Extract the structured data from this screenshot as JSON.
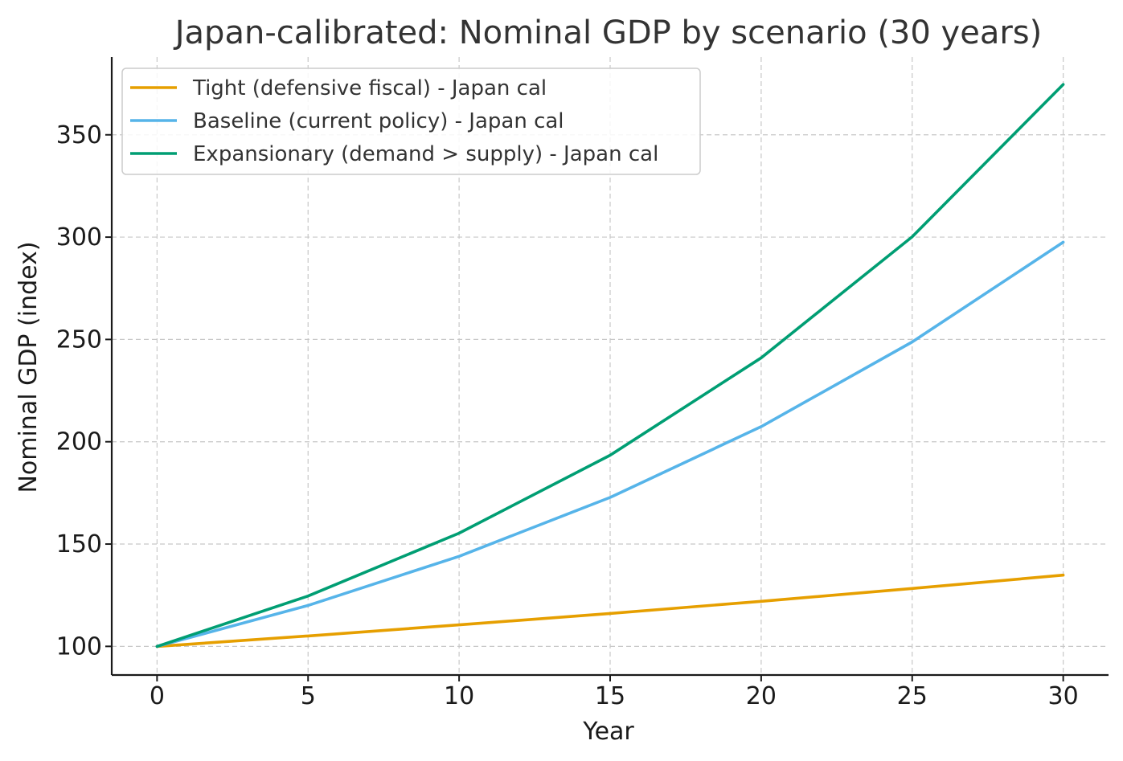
{
  "chart_data": {
    "type": "line",
    "title": "Japan-calibrated: Nominal GDP by scenario (30 years)",
    "xlabel": "Year",
    "ylabel": "Nominal GDP (index)",
    "xlim": [
      -1.5,
      31.5
    ],
    "ylim": [
      86,
      388
    ],
    "xticks": [
      0,
      5,
      10,
      15,
      20,
      25,
      30
    ],
    "yticks": [
      100,
      150,
      200,
      250,
      300,
      350
    ],
    "grid": true,
    "legend_position": "top-left",
    "x": [
      0,
      5,
      10,
      15,
      20,
      25,
      30
    ],
    "series": [
      {
        "name": "Tight (defensive fiscal) - Japan cal",
        "color": "#E69F00",
        "values": [
          100,
          105.1,
          110.5,
          116.1,
          122.0,
          128.3,
          134.8
        ]
      },
      {
        "name": "Baseline (current policy) - Japan cal",
        "color": "#56B4E9",
        "values": [
          100,
          120.0,
          144.0,
          172.8,
          207.4,
          248.8,
          297.5
        ]
      },
      {
        "name": "Expansionary (demand > supply) - Japan cal",
        "color": "#009E73",
        "values": [
          100,
          124.6,
          155.3,
          193.4,
          241.0,
          300.2,
          374.6
        ]
      }
    ]
  }
}
